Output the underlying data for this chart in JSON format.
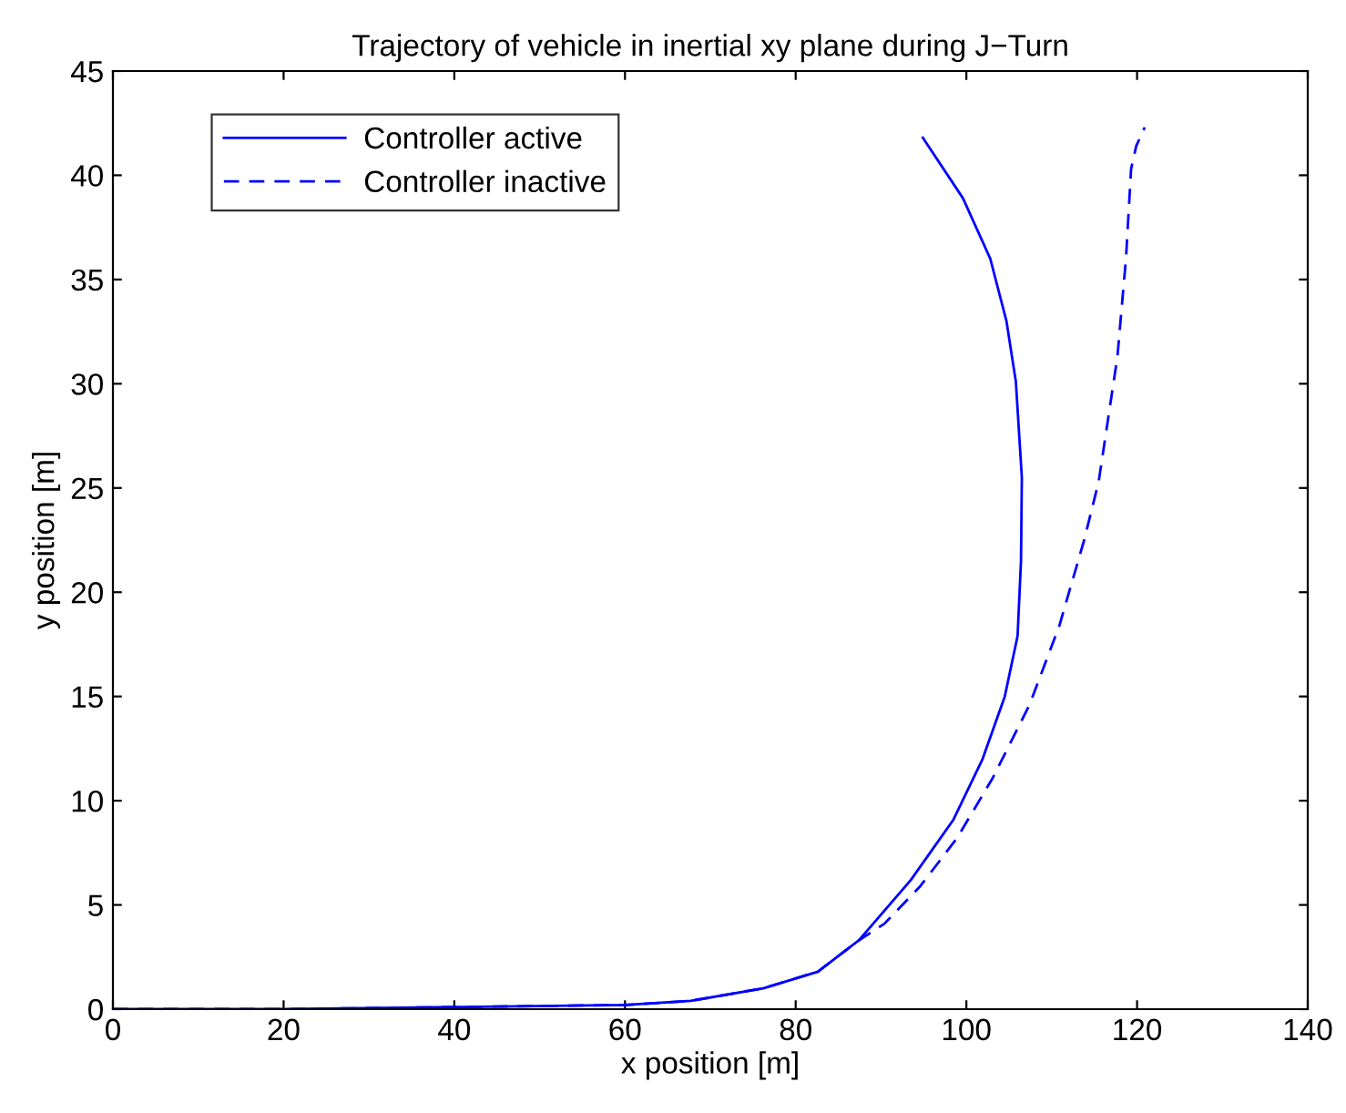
{
  "chart_data": {
    "type": "line",
    "title": "Trajectory of vehicle in inertial xy plane during J−Turn",
    "xlabel": "x position [m]",
    "ylabel": "y position [m]",
    "xlim": [
      0,
      140
    ],
    "ylim": [
      0,
      45
    ],
    "xticks": [
      0,
      20,
      40,
      60,
      80,
      100,
      120,
      140
    ],
    "yticks": [
      0,
      5,
      10,
      15,
      20,
      25,
      30,
      35,
      40,
      45
    ],
    "grid": false,
    "legend": "top left",
    "series": [
      {
        "name": "Controller active",
        "color": "#0000ff",
        "line_style": "solid",
        "x": [
          0,
          20,
          40,
          60,
          67.7,
          76.2,
          82.6,
          87.4,
          93.5,
          98.5,
          101.9,
          104.5,
          106.0,
          106.4,
          106.5,
          105.8,
          104.7,
          102.8,
          99.6,
          94.9
        ],
        "values": [
          0,
          0,
          0.1,
          0.2,
          0.4,
          1.0,
          1.8,
          3.3,
          6.2,
          9.1,
          12.0,
          15.0,
          17.9,
          21.5,
          25.5,
          30.1,
          33.0,
          36.0,
          38.9,
          41.8
        ]
      },
      {
        "name": "Controller inactive",
        "color": "#0000ff",
        "line_style": "dashed",
        "x": [
          0,
          20,
          40,
          60,
          67.7,
          76.2,
          82.6,
          87.4,
          90.4,
          94.6,
          98.9,
          103.1,
          107.4,
          110.9,
          113.8,
          115.5,
          117.7,
          118.7,
          119.3,
          119.9,
          120.9
        ],
        "values": [
          0,
          0,
          0.1,
          0.2,
          0.4,
          1.0,
          1.8,
          3.3,
          4.1,
          5.9,
          8.2,
          11.1,
          14.6,
          18.4,
          22.5,
          25.3,
          31.3,
          36.0,
          40.3,
          41.4,
          42.3
        ]
      }
    ]
  }
}
